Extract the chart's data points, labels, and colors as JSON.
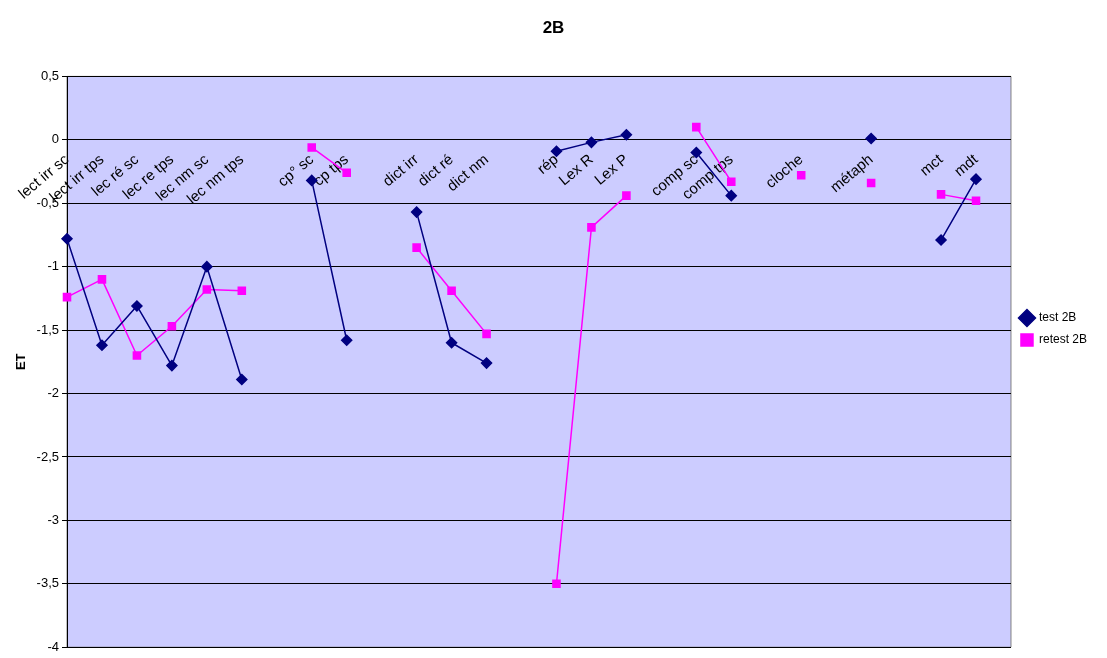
{
  "chart_data": {
    "type": "line",
    "title": "2B",
    "ylabel": "ET",
    "categories": [
      "lect irr sc",
      "lect irr tps",
      "lec ré sc",
      "lec re tps",
      "lec nm sc",
      "lec nm tps",
      null,
      "cp° sc",
      "cp tps",
      null,
      "dict irr",
      "dict ré",
      "dict nm",
      null,
      "rép",
      "Lex R",
      "Lex P",
      null,
      "comp sc",
      "comp tps",
      null,
      "cloche",
      null,
      "métaph",
      null,
      "mct",
      "mdt",
      null
    ],
    "series": [
      {
        "name": "test 2B",
        "color": "#000080",
        "marker": "diamond",
        "values": [
          -0.78,
          -1.62,
          -1.31,
          -1.78,
          -1.0,
          -1.89,
          null,
          -0.32,
          -1.58,
          null,
          -0.57,
          -1.6,
          -1.76,
          null,
          -0.09,
          -0.02,
          0.04,
          null,
          -0.1,
          -0.44,
          null,
          null,
          null,
          0.01,
          null,
          -0.79,
          -0.31,
          null
        ]
      },
      {
        "name": "retest 2B",
        "color": "#ff00ff",
        "marker": "square",
        "values": [
          -1.24,
          -1.1,
          -1.7,
          -1.47,
          -1.18,
          -1.19,
          null,
          -0.06,
          -0.26,
          null,
          -0.85,
          -1.19,
          -1.53,
          null,
          -3.5,
          -0.69,
          -0.44,
          null,
          0.1,
          -0.33,
          null,
          -0.28,
          null,
          -0.34,
          null,
          -0.43,
          -0.48,
          null
        ]
      }
    ],
    "ylim": [
      -4,
      0.5
    ],
    "yticks": [
      {
        "value": -4,
        "label": "-4"
      },
      {
        "value": -3.5,
        "label": "-3,5"
      },
      {
        "value": -3,
        "label": "-3"
      },
      {
        "value": -2.5,
        "label": "-2,5"
      },
      {
        "value": -2,
        "label": "-2"
      },
      {
        "value": -1.5,
        "label": "-1,5"
      },
      {
        "value": -1,
        "label": "-1"
      },
      {
        "value": -0.5,
        "label": "-0,5"
      },
      {
        "value": 0,
        "label": "0"
      },
      {
        "value": 0.5,
        "label": "0,5"
      }
    ],
    "grid": "y",
    "legend": "right",
    "line_style": "solid"
  }
}
